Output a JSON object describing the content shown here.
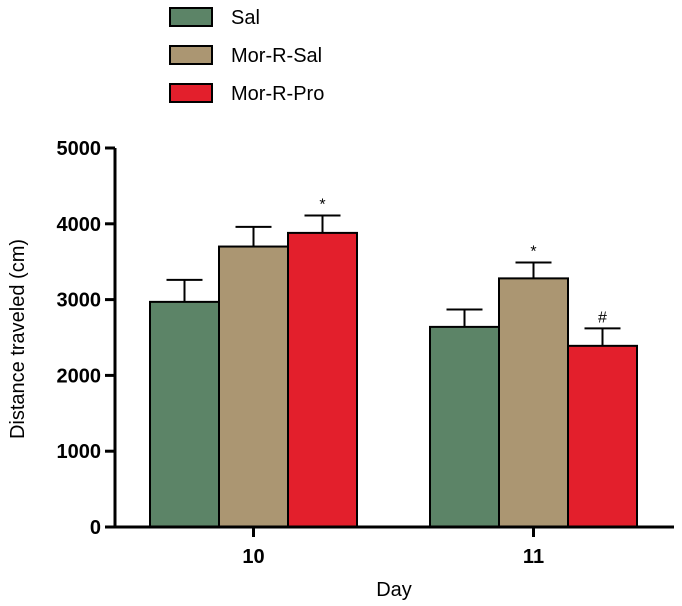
{
  "chart_data": {
    "type": "bar",
    "title": "",
    "xlabel": "Day",
    "ylabel": "Distance traveled (cm)",
    "categories": [
      "10",
      "11"
    ],
    "ylim": [
      0,
      5000
    ],
    "yticks": [
      "0",
      "1000",
      "2000",
      "3000",
      "4000",
      "5000"
    ],
    "legend_position": "top-left",
    "grid": false,
    "series": [
      {
        "name": "Sal",
        "color": "#5c8467",
        "values": [
          2970,
          2640
        ],
        "errors": [
          290,
          230
        ],
        "annotations": [
          "",
          ""
        ]
      },
      {
        "name": "Mor-R-Sal",
        "color": "#ab9672",
        "values": [
          3700,
          3280
        ],
        "errors": [
          260,
          210
        ],
        "annotations": [
          "",
          "*"
        ]
      },
      {
        "name": "Mor-R-Pro",
        "color": "#e31f2c",
        "values": [
          3880,
          2390
        ],
        "errors": [
          230,
          230
        ],
        "annotations": [
          "*",
          "#"
        ]
      }
    ]
  }
}
